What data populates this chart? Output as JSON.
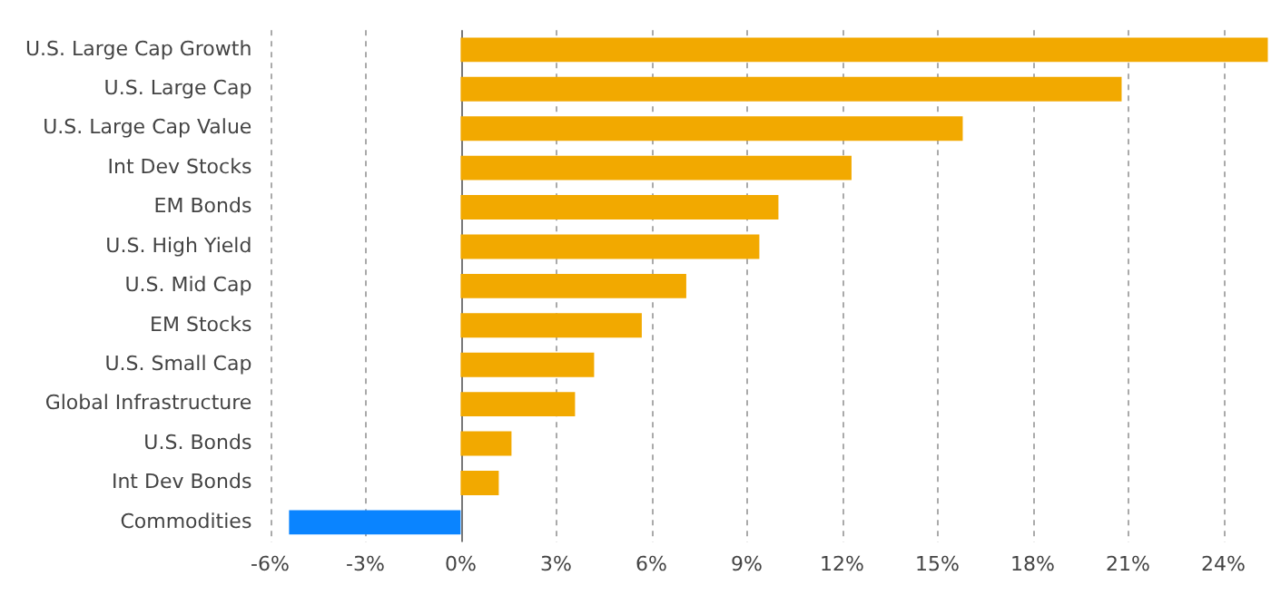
{
  "chart_data": {
    "type": "bar",
    "orientation": "horizontal",
    "categories": [
      "U.S. Large Cap Growth",
      "U.S. Large Cap",
      "U.S. Large Cap Value",
      "Int Dev Stocks",
      "EM Bonds",
      "U.S. High Yield",
      "U.S. Mid Cap",
      "EM Stocks",
      "U.S. Small Cap",
      "Global Infrastructure",
      "U.S. Bonds",
      "Int Dev Bonds",
      "Commodities"
    ],
    "values": [
      25.4,
      20.8,
      15.8,
      12.3,
      10.0,
      9.4,
      7.1,
      5.7,
      4.2,
      3.6,
      1.6,
      1.2,
      -5.4
    ],
    "colors": [
      "#f2a900",
      "#f2a900",
      "#f2a900",
      "#f2a900",
      "#f2a900",
      "#f2a900",
      "#f2a900",
      "#f2a900",
      "#f2a900",
      "#f2a900",
      "#f2a900",
      "#f2a900",
      "#0a84ff"
    ],
    "xlim": [
      -6,
      25.5
    ],
    "xticks": [
      {
        "value": -6,
        "label": "-6%"
      },
      {
        "value": -3,
        "label": "-3%"
      },
      {
        "value": 0,
        "label": "0%"
      },
      {
        "value": 3,
        "label": "3%"
      },
      {
        "value": 6,
        "label": "6%"
      },
      {
        "value": 9,
        "label": "9%"
      },
      {
        "value": 12,
        "label": "12%"
      },
      {
        "value": 15,
        "label": "15%"
      },
      {
        "value": 18,
        "label": "18%"
      },
      {
        "value": 21,
        "label": "21%"
      },
      {
        "value": 24,
        "label": "24%"
      }
    ],
    "grid": "x",
    "legend": false
  }
}
